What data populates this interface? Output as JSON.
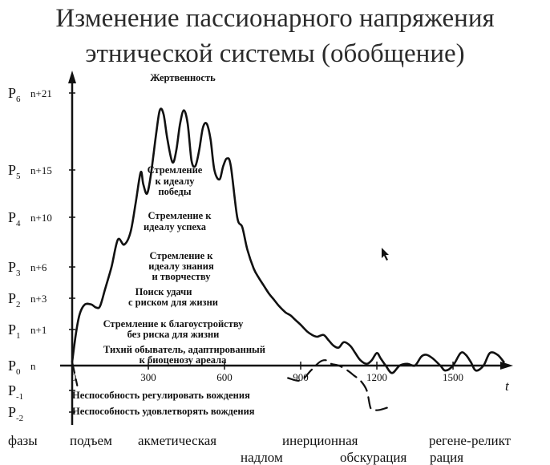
{
  "chart_data": {
    "type": "line",
    "title_lines": [
      "Изменение пассионарного напряжения",
      "этнической системы (обобщение)"
    ],
    "x_axis_label": "t",
    "x_ticks": [
      0,
      300,
      600,
      900,
      1200,
      1500
    ],
    "xlim": [
      0,
      1700
    ],
    "y_levels": [
      {
        "label": "P",
        "sub": "6",
        "value": "n+21",
        "y": 7
      },
      {
        "label": "P",
        "sub": "5",
        "value": "n+15",
        "y": 5
      },
      {
        "label": "P",
        "sub": "4",
        "value": "n+10",
        "y": 4
      },
      {
        "label": "P",
        "sub": "3",
        "value": "n+6",
        "y": 3
      },
      {
        "label": "P",
        "sub": "2",
        "value": "n+3",
        "y": 2
      },
      {
        "label": "P",
        "sub": "1",
        "value": "n+1",
        "y": 1
      },
      {
        "label": "P",
        "sub": "0",
        "value": "n",
        "y": 0
      },
      {
        "label": "P",
        "sub": "-1",
        "value": "",
        "y": -0.5
      },
      {
        "label": "P",
        "sub": "-2",
        "value": "",
        "y": -1
      }
    ],
    "ylim": [
      -1.2,
      7.4
    ],
    "series": [
      {
        "style": "solid",
        "x": [
          0,
          15,
          30,
          50,
          75,
          95,
          110,
          130,
          155,
          180,
          205,
          230,
          250,
          270,
          280,
          295,
          310,
          330,
          345,
          360,
          375,
          395,
          410,
          425,
          440,
          455,
          470,
          485,
          500,
          515,
          530,
          545,
          560,
          580,
          595,
          610,
          625,
          650,
          670,
          690,
          715,
          735,
          755,
          775,
          795,
          815,
          840,
          860,
          880,
          900,
          925,
          945,
          965,
          990,
          1010,
          1030,
          1050,
          1070,
          1095,
          1115,
          1135,
          1160,
          1180,
          1200,
          1215,
          1235,
          1260,
          1290,
          1320,
          1350,
          1375,
          1395,
          1420,
          1450,
          1470,
          1500,
          1530,
          1550,
          1570,
          1590,
          1620,
          1645,
          1675,
          1700
        ],
        "y": [
          0.1,
          0.9,
          1.5,
          1.8,
          1.8,
          1.7,
          1.75,
          2.3,
          3.0,
          3.55,
          3.45,
          3.7,
          4.3,
          4.95,
          4.7,
          4.5,
          4.9,
          5.9,
          6.55,
          6.45,
          5.8,
          5.2,
          5.5,
          6.2,
          6.55,
          6.2,
          5.25,
          5.1,
          5.5,
          6.1,
          6.2,
          5.8,
          5.0,
          4.8,
          5.1,
          5.3,
          5.1,
          4.0,
          3.8,
          3.35,
          2.95,
          2.65,
          2.4,
          2.15,
          1.95,
          1.75,
          1.55,
          1.45,
          1.3,
          1.15,
          0.95,
          0.85,
          0.8,
          0.85,
          0.7,
          0.55,
          0.5,
          0.65,
          0.55,
          0.35,
          0.15,
          0.05,
          0.15,
          0.35,
          0.2,
          0.0,
          -0.15,
          0.0,
          0.05,
          0.0,
          0.25,
          0.3,
          0.2,
          0.0,
          -0.1,
          0.0,
          0.35,
          0.3,
          0.1,
          -0.1,
          0.0,
          0.35,
          0.3,
          0.1
        ]
      },
      {
        "style": "dashed",
        "x": [
          0,
          20
        ],
        "y": [
          0.1,
          -0.4
        ]
      },
      {
        "style": "dashed",
        "x": [
          850,
          900,
          940,
          975,
          1000,
          1020,
          1050,
          1085,
          1110,
          1135,
          1160,
          1175,
          1190,
          1210,
          1240
        ],
        "y": [
          -0.25,
          -0.3,
          -0.1,
          0.1,
          0.15,
          0.05,
          0.0,
          -0.1,
          -0.2,
          -0.3,
          -0.5,
          -0.9,
          -0.95,
          -0.95,
          -0.9
        ]
      }
    ],
    "annotations": [
      "Жертвенность",
      "Стремление",
      "к   идеалу",
      "победы",
      "Стремление к",
      "идеалу  успеха",
      "Стремление к",
      "идеалу  знания",
      "и творчеству",
      "Поиск  удачи",
      "с   риском  для  жизни",
      "Стремление к   благоустройству",
      "без  риска  для  жизни",
      "Тихий  обыватель, адаптированный",
      "к биоценозу  ареала",
      "Неспособность регулировать вождения",
      "Неспособность удовлетворять вождения"
    ],
    "phases": [
      "фазы",
      "подъем",
      "акметическая",
      "инерционная",
      "надлом",
      "обскурация",
      "регене-",
      "рация",
      "реликт"
    ],
    "colors": {
      "line": "#111111",
      "text": "#111111",
      "title": "#2b2b2b",
      "background": "#ffffff"
    }
  }
}
